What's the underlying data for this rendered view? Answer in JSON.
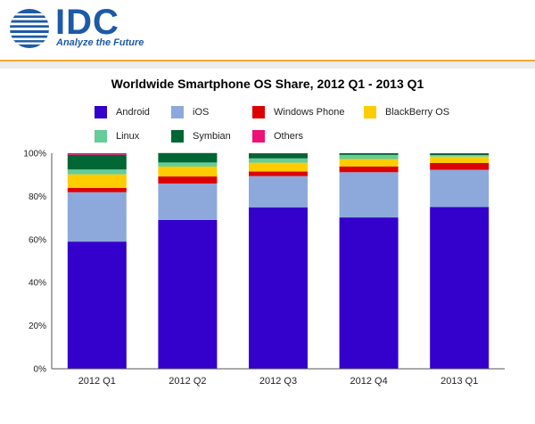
{
  "brand": {
    "logo_text": "IDC",
    "tagline": "Analyze the Future",
    "colors": {
      "logo_blue": "#1d5aa6",
      "accent_orange": "#f7a634"
    }
  },
  "chart_data": {
    "type": "bar",
    "stacked": true,
    "title": "Worldwide Smartphone OS Share, 2012 Q1 - 2013 Q1",
    "xlabel": "",
    "ylabel": "",
    "ylim": [
      0,
      100
    ],
    "yticks": [
      "0%",
      "20%",
      "40%",
      "60%",
      "80%",
      "100%"
    ],
    "grid": false,
    "legend_position": "top",
    "categories": [
      "2012 Q1",
      "2012 Q2",
      "2012 Q3",
      "2012 Q4",
      "2013 Q1"
    ],
    "series": [
      {
        "name": "Android",
        "color": "#3300cc",
        "values": [
          59.0,
          69.0,
          74.9,
          70.2,
          75.0
        ]
      },
      {
        "name": "iOS",
        "color": "#8da9db",
        "values": [
          22.9,
          16.9,
          14.5,
          21.0,
          17.3
        ]
      },
      {
        "name": "Windows Phone",
        "color": "#dd0000",
        "values": [
          2.0,
          3.3,
          2.1,
          2.6,
          3.2
        ]
      },
      {
        "name": "BlackBerry OS",
        "color": "#ffcc00",
        "values": [
          6.3,
          4.6,
          4.1,
          3.5,
          2.9
        ]
      },
      {
        "name": "Linux",
        "color": "#66cc99",
        "values": [
          2.3,
          1.9,
          2.0,
          1.9,
          0.8
        ]
      },
      {
        "name": "Symbian",
        "color": "#006633",
        "values": [
          6.8,
          4.4,
          2.3,
          0.8,
          0.6
        ]
      },
      {
        "name": "Others",
        "color": "#ee1177",
        "values": [
          0.7,
          0.0,
          0.1,
          0.0,
          0.2
        ]
      }
    ]
  }
}
